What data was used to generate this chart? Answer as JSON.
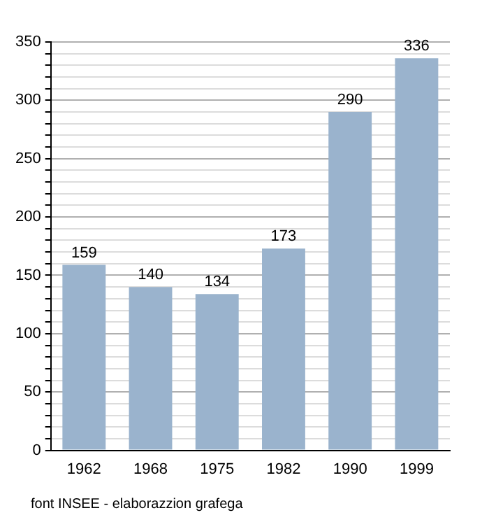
{
  "chart_data": {
    "type": "bar",
    "categories": [
      "1962",
      "1968",
      "1975",
      "1982",
      "1990",
      "1999"
    ],
    "values": [
      159,
      140,
      134,
      173,
      290,
      336
    ],
    "color": "#9ab3cd",
    "data_labels": true,
    "ylim": [
      0,
      350
    ],
    "yticks": [
      0,
      {
        "value": 10,
        "label": null
      },
      {
        "value": 20,
        "label": null
      },
      {
        "value": 30,
        "label": null
      },
      {
        "value": 40,
        "label": null
      },
      50,
      {
        "value": 60,
        "label": null
      },
      {
        "value": 70,
        "label": null
      },
      {
        "value": 80,
        "label": null
      },
      {
        "value": 90,
        "label": null
      },
      100,
      {
        "value": 110,
        "label": null
      },
      {
        "value": 120,
        "label": null
      },
      {
        "value": 130,
        "label": null
      },
      {
        "value": 140,
        "label": null
      },
      150,
      {
        "value": 160,
        "label": null
      },
      {
        "value": 170,
        "label": null
      },
      {
        "value": 180,
        "label": null
      },
      {
        "value": 190,
        "label": null
      },
      200,
      {
        "value": 210,
        "label": null
      },
      {
        "value": 220,
        "label": null
      },
      {
        "value": 230,
        "label": null
      },
      {
        "value": 240,
        "label": null
      },
      250,
      {
        "value": 260,
        "label": null
      },
      {
        "value": 270,
        "label": null
      },
      {
        "value": 280,
        "label": null
      },
      {
        "value": 290,
        "label": null
      },
      300,
      {
        "value": 310,
        "label": null
      },
      {
        "value": 320,
        "label": null
      },
      {
        "value": 330,
        "label": null
      },
      {
        "value": 340,
        "label": null
      },
      350
    ],
    "grid": "y",
    "annotations": [
      "font INSEE - elaborazzion grafega"
    ]
  }
}
